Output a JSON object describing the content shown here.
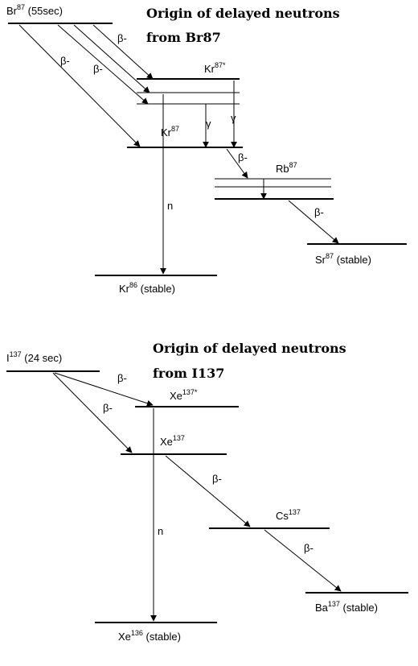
{
  "br_diagram": {
    "title_line1": "Origin of delayed neutrons",
    "title_line2": "from Br87",
    "parent": {
      "symbol": "Br",
      "mass": "87",
      "suffix": " (55sec)"
    },
    "excited": {
      "symbol": "Kr",
      "mass": "87*"
    },
    "kr87": {
      "symbol": "Kr",
      "mass": "87"
    },
    "rb87": {
      "symbol": "Rb",
      "mass": "87"
    },
    "kr86": {
      "symbol": "Kr",
      "mass": "86",
      "suffix": " (stable)"
    },
    "sr87": {
      "symbol": "Sr",
      "mass": "87",
      "suffix": " (stable)"
    },
    "beta_label": "β-",
    "gamma_label": "γ",
    "neutron_label": "n"
  },
  "i_diagram": {
    "title_line1": "Origin of delayed neutrons",
    "title_line2": "from I137",
    "parent": {
      "symbol": "I",
      "mass": "137",
      "suffix": " (24 sec)"
    },
    "excited": {
      "symbol": "Xe",
      "mass": "137*"
    },
    "xe137": {
      "symbol": "Xe",
      "mass": "137"
    },
    "cs137": {
      "symbol": "Cs",
      "mass": "137"
    },
    "xe136": {
      "symbol": "Xe",
      "mass": "136",
      "suffix": " (stable)"
    },
    "ba137": {
      "symbol": "Ba",
      "mass": "137",
      "suffix": " (stable)"
    },
    "beta_label": "β-",
    "neutron_label": "n"
  }
}
